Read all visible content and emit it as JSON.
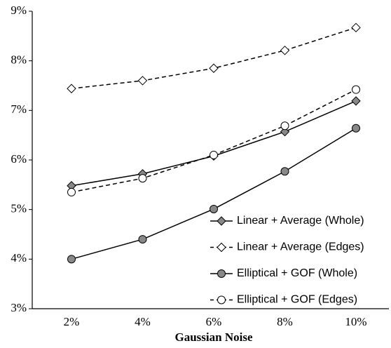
{
  "chart_data": {
    "type": "line",
    "x_label": "Gaussian Noise",
    "categories": [
      "2%",
      "4%",
      "6%",
      "8%",
      "10%"
    ],
    "ylim": [
      3,
      9
    ],
    "yticks": [
      {
        "value": 3,
        "label": "3%"
      },
      {
        "value": 4,
        "label": "4%"
      },
      {
        "value": 5,
        "label": "5%"
      },
      {
        "value": 6,
        "label": "6%"
      },
      {
        "value": 7,
        "label": "7%"
      },
      {
        "value": 8,
        "label": "8%"
      },
      {
        "value": 9,
        "label": "9%"
      }
    ],
    "grid": false,
    "legend": "lower right",
    "series": [
      {
        "name": "Linear + Average (Whole)",
        "color": "#888888",
        "marker": "diamond",
        "line_style": "solid",
        "values": [
          5.48,
          5.72,
          6.08,
          6.57,
          7.19
        ]
      },
      {
        "name": "Linear + Average (Edges)",
        "color": "#ffffff",
        "marker": "diamond",
        "line_style": "dashed",
        "values": [
          7.44,
          7.6,
          7.85,
          8.21,
          8.67
        ]
      },
      {
        "name": "Elliptical + GOF (Whole)",
        "color": "#888888",
        "marker": "circle",
        "line_style": "solid",
        "values": [
          4.0,
          4.4,
          5.01,
          5.77,
          6.64
        ]
      },
      {
        "name": "Elliptical + GOF (Edges)",
        "color": "#ffffff",
        "marker": "circle",
        "line_style": "dashed",
        "values": [
          5.35,
          5.63,
          6.1,
          6.69,
          7.42
        ]
      }
    ]
  }
}
